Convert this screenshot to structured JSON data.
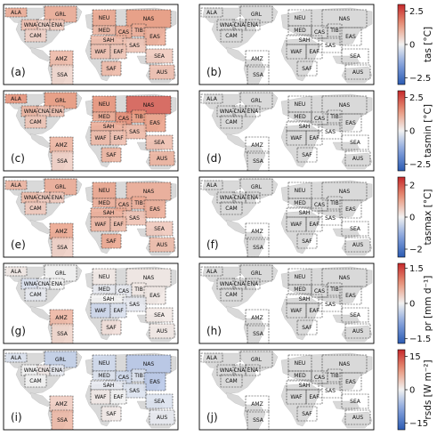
{
  "chart_data": [
    {
      "type": "heatmap",
      "panel": "(a)",
      "variable": "tas",
      "unit": "[°C]",
      "colorbar_ticks": [
        2.5,
        0,
        -2.5
      ],
      "clim": [
        -3,
        3
      ],
      "significant_only": false,
      "regions": {
        "ALA": 1.2,
        "GRL": 1.2,
        "NEU": 1.3,
        "NAS": 1.5,
        "WNA": 0.9,
        "CNA": 0.6,
        "ENA": 0.7,
        "MED": 1.1,
        "CAS": 1.3,
        "TIB": 1.2,
        "EAS": 1.2,
        "CAM": 0.6,
        "SAH": 1.0,
        "SAS": 0.8,
        "WAF": 0.9,
        "EAF": 0.8,
        "SEA": 0.7,
        "AMZ": 1.0,
        "SAF": 1.0,
        "AUS": 0.9,
        "SSA": 0.5
      }
    },
    {
      "type": "heatmap",
      "panel": "(b)",
      "variable": "tas",
      "unit": "[°C]",
      "significant_only": true,
      "regions": {}
    },
    {
      "type": "heatmap",
      "panel": "(c)",
      "variable": "tasmin",
      "unit": "[°C]",
      "colorbar_ticks": [
        2.5,
        0,
        -2.5
      ],
      "clim": [
        -3,
        3
      ],
      "significant_only": false,
      "regions": {
        "ALA": 1.6,
        "GRL": 1.5,
        "NEU": 1.6,
        "NAS": 2.3,
        "WNA": 1.1,
        "CNA": 0.8,
        "ENA": 0.9,
        "MED": 1.3,
        "CAS": 1.7,
        "TIB": 1.5,
        "EAS": 1.4,
        "CAM": 0.8,
        "SAH": 1.2,
        "SAS": 1.0,
        "WAF": 1.0,
        "EAF": 0.9,
        "SEA": 0.9,
        "AMZ": 1.1,
        "SAF": 1.1,
        "AUS": 1.1,
        "SSA": 0.6
      }
    },
    {
      "type": "heatmap",
      "panel": "(d)",
      "variable": "tasmin",
      "unit": "[°C]",
      "significant_only": true,
      "regions": {}
    },
    {
      "type": "heatmap",
      "panel": "(e)",
      "variable": "tasmax",
      "unit": "[°C]",
      "colorbar_ticks": [
        2,
        0,
        -2
      ],
      "clim": [
        -2.5,
        2.5
      ],
      "significant_only": false,
      "regions": {
        "ALA": 0.9,
        "GRL": 1.0,
        "NEU": 1.1,
        "NAS": 1.0,
        "WNA": 0.8,
        "CNA": 0.6,
        "ENA": 0.6,
        "MED": 1.0,
        "CAS": 1.0,
        "TIB": 1.0,
        "EAS": 1.0,
        "CAM": 0.6,
        "SAH": 1.0,
        "SAS": 0.7,
        "WAF": 0.9,
        "EAF": 0.8,
        "SEA": 0.6,
        "AMZ": 1.1,
        "SAF": 1.1,
        "AUS": 0.8,
        "SSA": 0.5
      }
    },
    {
      "type": "heatmap",
      "panel": "(f)",
      "variable": "tasmax",
      "unit": "[°C]",
      "significant_only": true,
      "regions": {}
    },
    {
      "type": "heatmap",
      "panel": "(g)",
      "variable": "pr",
      "unit": "[mm d⁻¹]",
      "colorbar_ticks": [
        1.5,
        0,
        -1.5
      ],
      "clim": [
        -1.7,
        1.7
      ],
      "significant_only": false,
      "regions": {
        "ALA": 0.1,
        "GRL": 0.0,
        "NEU": 0.1,
        "NAS": 0.1,
        "WNA": -0.2,
        "CNA": -0.1,
        "ENA": 0.0,
        "MED": -0.1,
        "CAS": -0.1,
        "TIB": 0.1,
        "EAS": 0.1,
        "CAM": -0.1,
        "SAH": 0.0,
        "SAS": -0.1,
        "WAF": -0.3,
        "EAF": -0.2,
        "SEA": 0.1,
        "AMZ": 0.6,
        "SAF": 0.2,
        "AUS": 0.1,
        "SSA": 0.3
      }
    },
    {
      "type": "heatmap",
      "panel": "(h)",
      "variable": "pr",
      "unit": "[mm d⁻¹]",
      "significant_only": true,
      "regions": {}
    },
    {
      "type": "heatmap",
      "panel": "(i)",
      "variable": "rsds",
      "unit": "[W m⁻²]",
      "colorbar_ticks": [
        15,
        0,
        -15
      ],
      "clim": [
        -18,
        18
      ],
      "significant_only": false,
      "regions": {
        "ALA": -2,
        "GRL": -4,
        "NEU": -3,
        "NAS": -5,
        "WNA": 0,
        "CNA": 1,
        "ENA": -1,
        "MED": -2,
        "CAS": -3,
        "TIB": -2,
        "EAS": -5,
        "CAM": 0,
        "SAH": -1,
        "SAS": -2,
        "WAF": 1,
        "EAF": 0,
        "SEA": -2,
        "AMZ": 4,
        "SAF": 1,
        "AUS": -1,
        "SSA": 6
      }
    },
    {
      "type": "heatmap",
      "panel": "(j)",
      "variable": "rsds",
      "unit": "[W m⁻²]",
      "significant_only": true,
      "regions": {}
    }
  ],
  "region_names": [
    "ALA",
    "GRL",
    "NEU",
    "NAS",
    "WNA",
    "CNA",
    "ENA",
    "MED",
    "CAS",
    "TIB",
    "EAS",
    "CAM",
    "SAH",
    "SAS",
    "WAF",
    "EAF",
    "SEA",
    "AMZ",
    "SAF",
    "AUS",
    "SSA"
  ],
  "colors": {
    "land_gray": "#d9d9d9",
    "zero": "#f2f2f2",
    "warm": "#c6282b",
    "cold": "#2c5bb3"
  }
}
